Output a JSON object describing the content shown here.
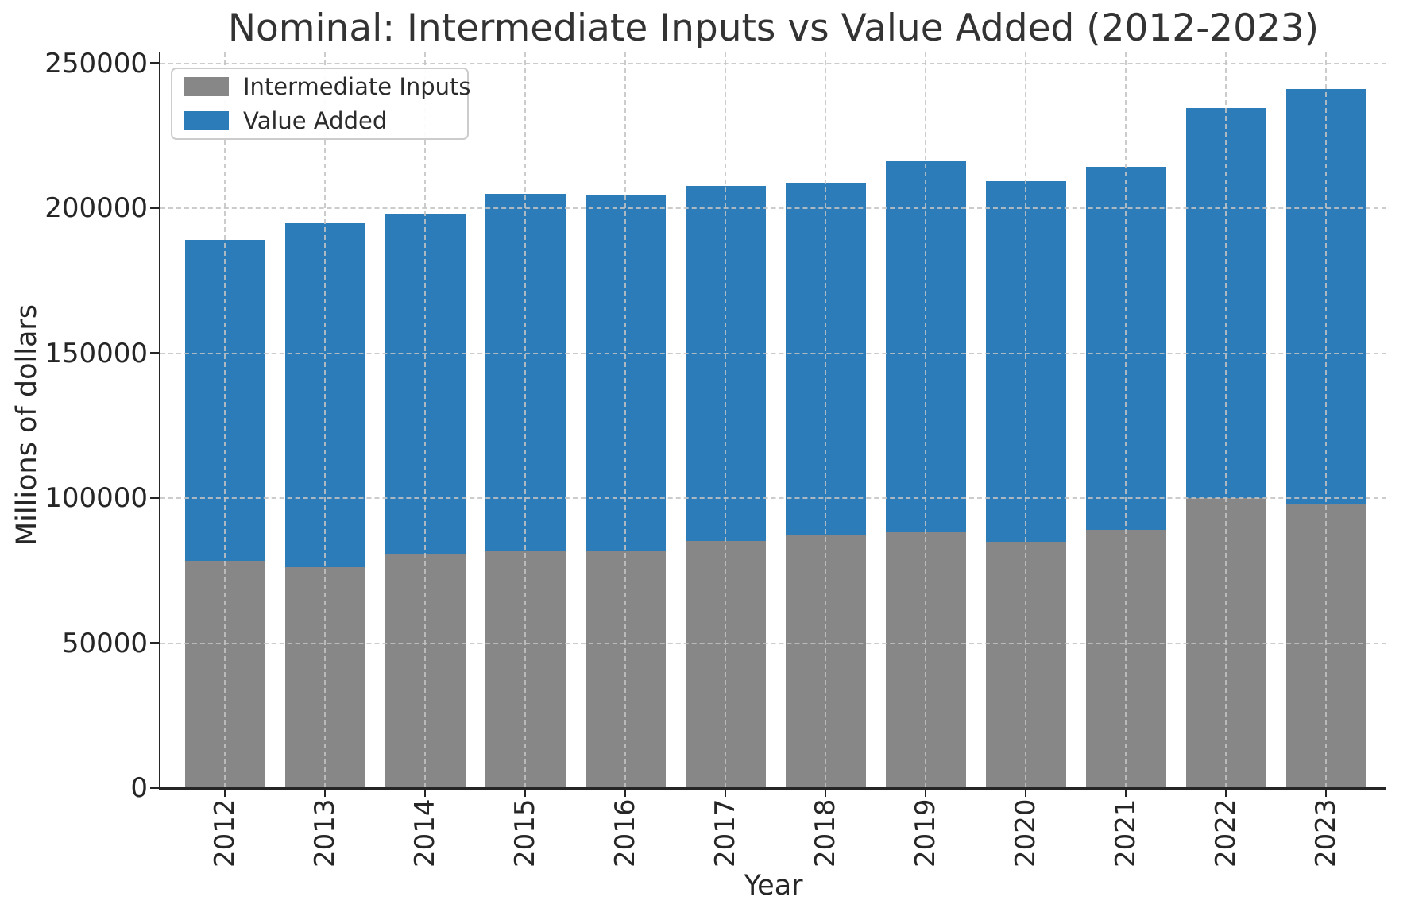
{
  "chart_data": {
    "type": "bar",
    "stacked": true,
    "title": "Nominal: Intermediate Inputs vs Value Added (2012-2023)",
    "xlabel": "Year",
    "ylabel": "Millions of dollars",
    "categories": [
      "2012",
      "2013",
      "2014",
      "2015",
      "2016",
      "2017",
      "2018",
      "2019",
      "2020",
      "2021",
      "2022",
      "2023"
    ],
    "series": [
      {
        "name": "Intermediate Inputs",
        "color": "#878787",
        "values": [
          78400,
          76200,
          80900,
          82000,
          82000,
          85200,
          87500,
          88100,
          85000,
          89100,
          100000,
          98100
        ]
      },
      {
        "name": "Value Added",
        "color": "#2b7cb8",
        "values": [
          110700,
          118700,
          117300,
          123000,
          122500,
          122600,
          121400,
          128200,
          124400,
          125100,
          134500,
          142900
        ]
      }
    ],
    "totals": [
      189100,
      194900,
      198200,
      205000,
      204500,
      207800,
      208900,
      216300,
      209400,
      214200,
      234500,
      241000
    ],
    "ylim": [
      0,
      253700
    ],
    "yticks": [
      0,
      50000,
      100000,
      150000,
      200000,
      250000
    ],
    "grid": "dashed both axes",
    "legend_position": "upper left"
  }
}
